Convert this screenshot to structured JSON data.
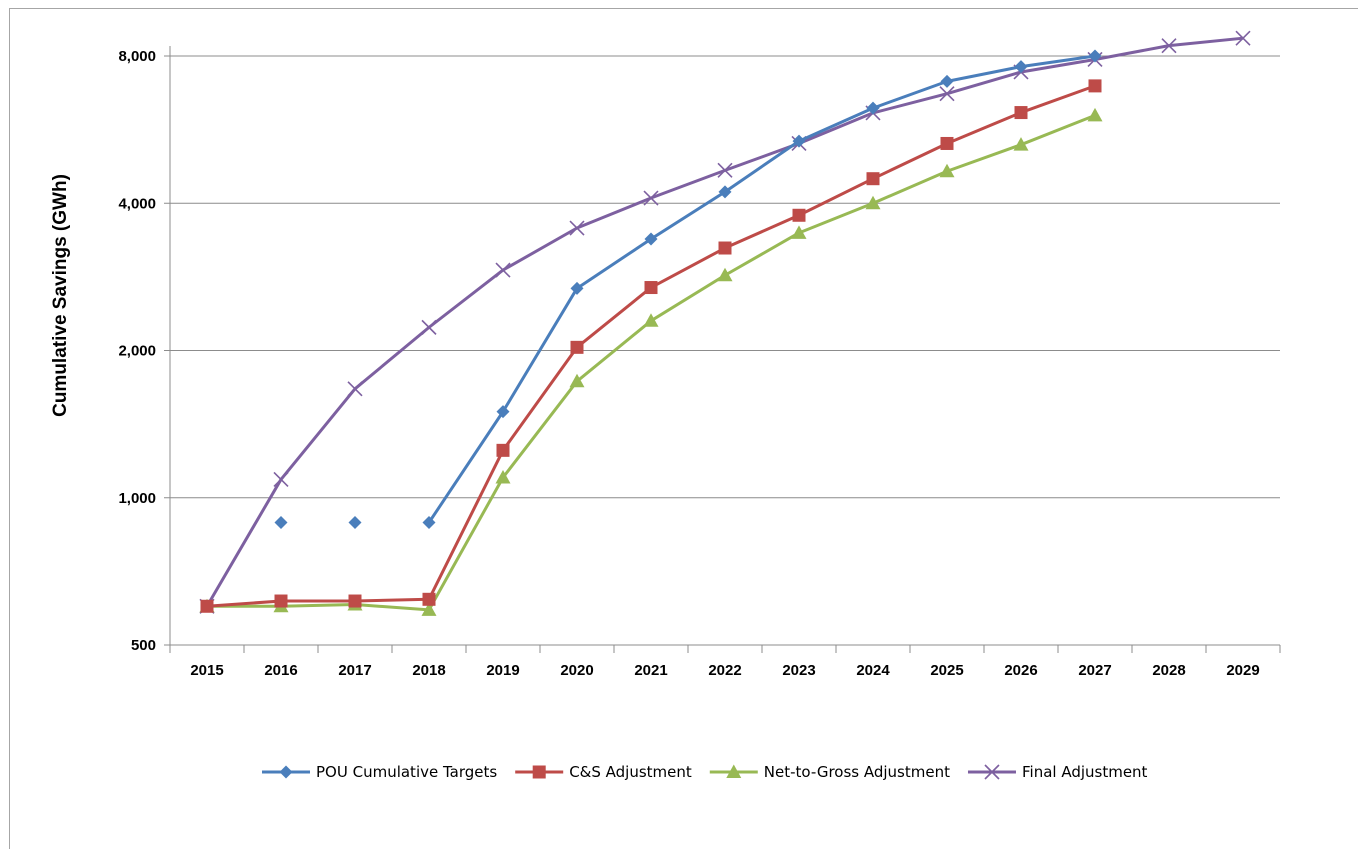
{
  "chart_data": {
    "type": "line",
    "title": "",
    "xlabel": "",
    "ylabel": "Cumulative Savings (GWh)",
    "y_scale": "log2",
    "ylim": [
      500,
      8800
    ],
    "y_ticks": [
      500,
      1000,
      2000,
      4000,
      8000
    ],
    "y_tick_labels": [
      "500",
      "1,000",
      "2,000",
      "4,000",
      "8,000"
    ],
    "categories": [
      "2015",
      "2016",
      "2017",
      "2018",
      "2019",
      "2020",
      "2021",
      "2022",
      "2023",
      "2024",
      "2025",
      "2026",
      "2027",
      "2028",
      "2029"
    ],
    "grid": "horizontal",
    "legend_position": "bottom",
    "series": [
      {
        "name": "POU Cumulative Targets",
        "color": "#4a7ebb",
        "marker": "diamond",
        "values": [
          null,
          890,
          890,
          890,
          1500,
          2680,
          3380,
          4220,
          5360,
          6260,
          7100,
          7610,
          8000,
          null,
          null
        ],
        "connect_from_index": 3
      },
      {
        "name": "C&S Adjustment",
        "color": "#be4b48",
        "marker": "square",
        "values": [
          600,
          615,
          615,
          620,
          1250,
          2030,
          2690,
          3240,
          3780,
          4490,
          5300,
          6130,
          6950,
          null,
          null
        ]
      },
      {
        "name": "Net-to-Gross Adjustment",
        "color": "#98b954",
        "marker": "triangle",
        "values": [
          600,
          600,
          605,
          590,
          1100,
          1730,
          2300,
          2850,
          3480,
          4000,
          4650,
          5270,
          6050,
          null,
          null
        ]
      },
      {
        "name": "Final Adjustment",
        "color": "#7d60a0",
        "marker": "x",
        "values": [
          600,
          1090,
          1670,
          2230,
          2920,
          3560,
          4100,
          4670,
          5300,
          6120,
          6700,
          7420,
          7870,
          8400,
          8700
        ]
      }
    ]
  }
}
